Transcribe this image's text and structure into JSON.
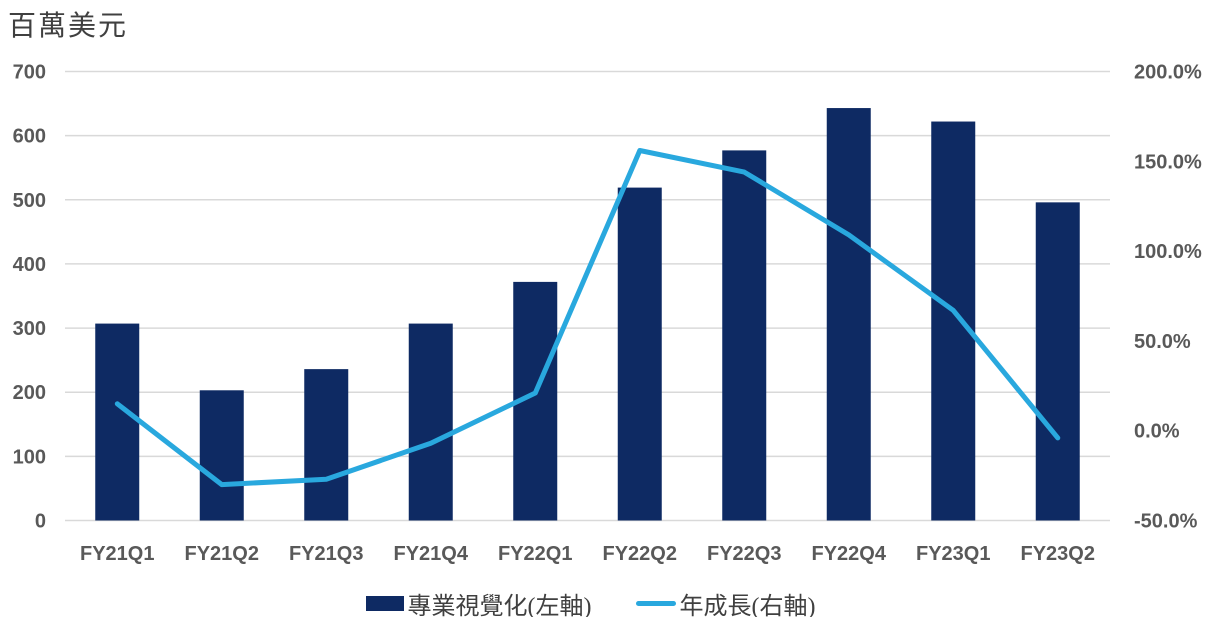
{
  "title": "百萬美元",
  "chart_data": {
    "type": "combo-bar-line",
    "categories": [
      "FY21Q1",
      "FY21Q2",
      "FY21Q3",
      "FY21Q4",
      "FY22Q1",
      "FY22Q2",
      "FY22Q3",
      "FY22Q4",
      "FY23Q1",
      "FY23Q2"
    ],
    "series": [
      {
        "name": "專業視覺化(左軸)",
        "type": "bar",
        "axis": "left",
        "color": "#0e2a63",
        "values": [
          307,
          203,
          236,
          307,
          372,
          519,
          577,
          643,
          622,
          496
        ]
      },
      {
        "name": "年成長(右軸)",
        "type": "line",
        "axis": "right",
        "color": "#29a8de",
        "values": [
          15,
          -30,
          -27,
          -7,
          21,
          156,
          144,
          109,
          67,
          -4
        ]
      }
    ],
    "left_axis": {
      "unit": "百萬美元",
      "min": 0,
      "max": 700,
      "step": 100,
      "ticks": [
        "0",
        "100",
        "200",
        "300",
        "400",
        "500",
        "600",
        "700"
      ]
    },
    "right_axis": {
      "min": -50,
      "max": 200,
      "step": 50,
      "ticks": [
        "-50.0%",
        "0.0%",
        "50.0%",
        "100.0%",
        "150.0%",
        "200.0%"
      ]
    },
    "grid": true,
    "legend_position": "bottom",
    "colors": {
      "gridline": "#d9d9d9",
      "axis_text": "#595959",
      "title_text": "#404040"
    }
  }
}
